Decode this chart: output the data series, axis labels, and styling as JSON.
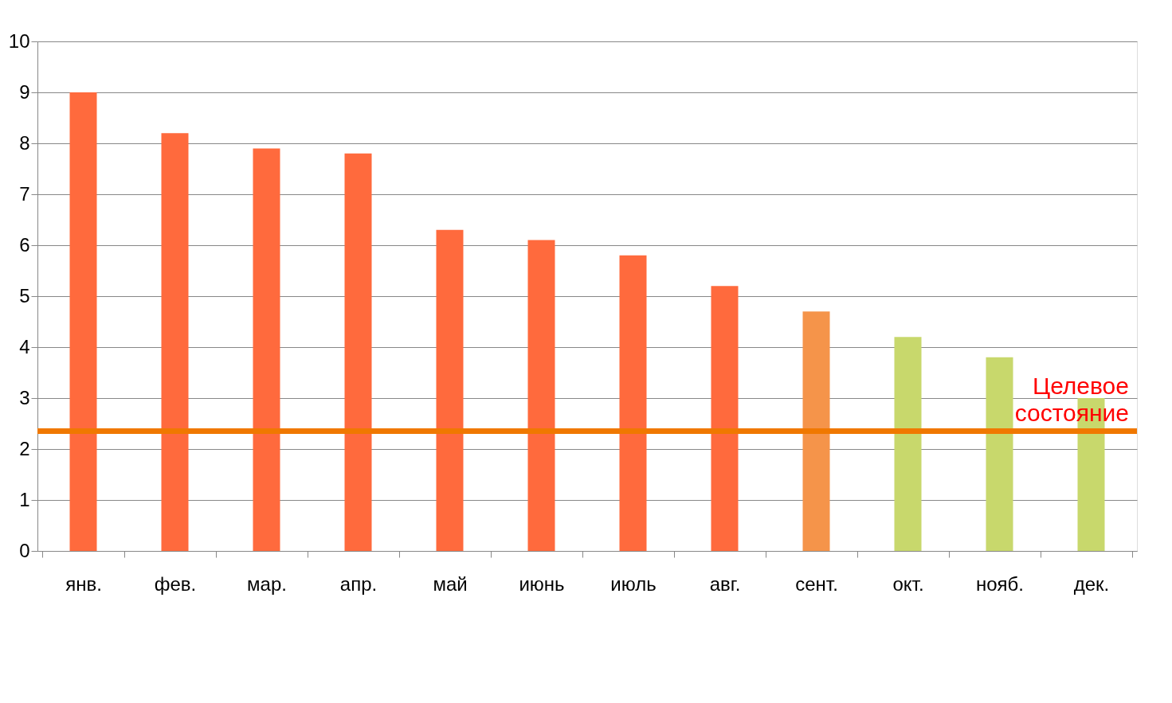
{
  "chart_data": {
    "type": "bar",
    "categories": [
      "янв.",
      "фев.",
      "мар.",
      "апр.",
      "май",
      "июнь",
      "июль",
      "авг.",
      "сент.",
      "окт.",
      "нояб.",
      "дек."
    ],
    "values": [
      9.0,
      8.2,
      7.9,
      7.8,
      6.3,
      6.1,
      5.8,
      5.2,
      4.7,
      4.2,
      3.8,
      3.0
    ],
    "colors": [
      "#ff6a3d",
      "#ff6a3d",
      "#ff6a3d",
      "#ff6a3d",
      "#ff6a3d",
      "#ff6a3d",
      "#ff6a3d",
      "#ff6a3d",
      "#f5944a",
      "#c8d86c",
      "#c8d86c",
      "#c8d86c"
    ],
    "ylim": [
      0,
      10
    ],
    "yticks": [
      0,
      1,
      2,
      3,
      4,
      5,
      6,
      7,
      8,
      9,
      10
    ],
    "grid": "y",
    "ref_lines": [
      {
        "axis": "y",
        "value": 2.35,
        "label": "Целевое состояние",
        "color": "#f07800"
      }
    ]
  }
}
